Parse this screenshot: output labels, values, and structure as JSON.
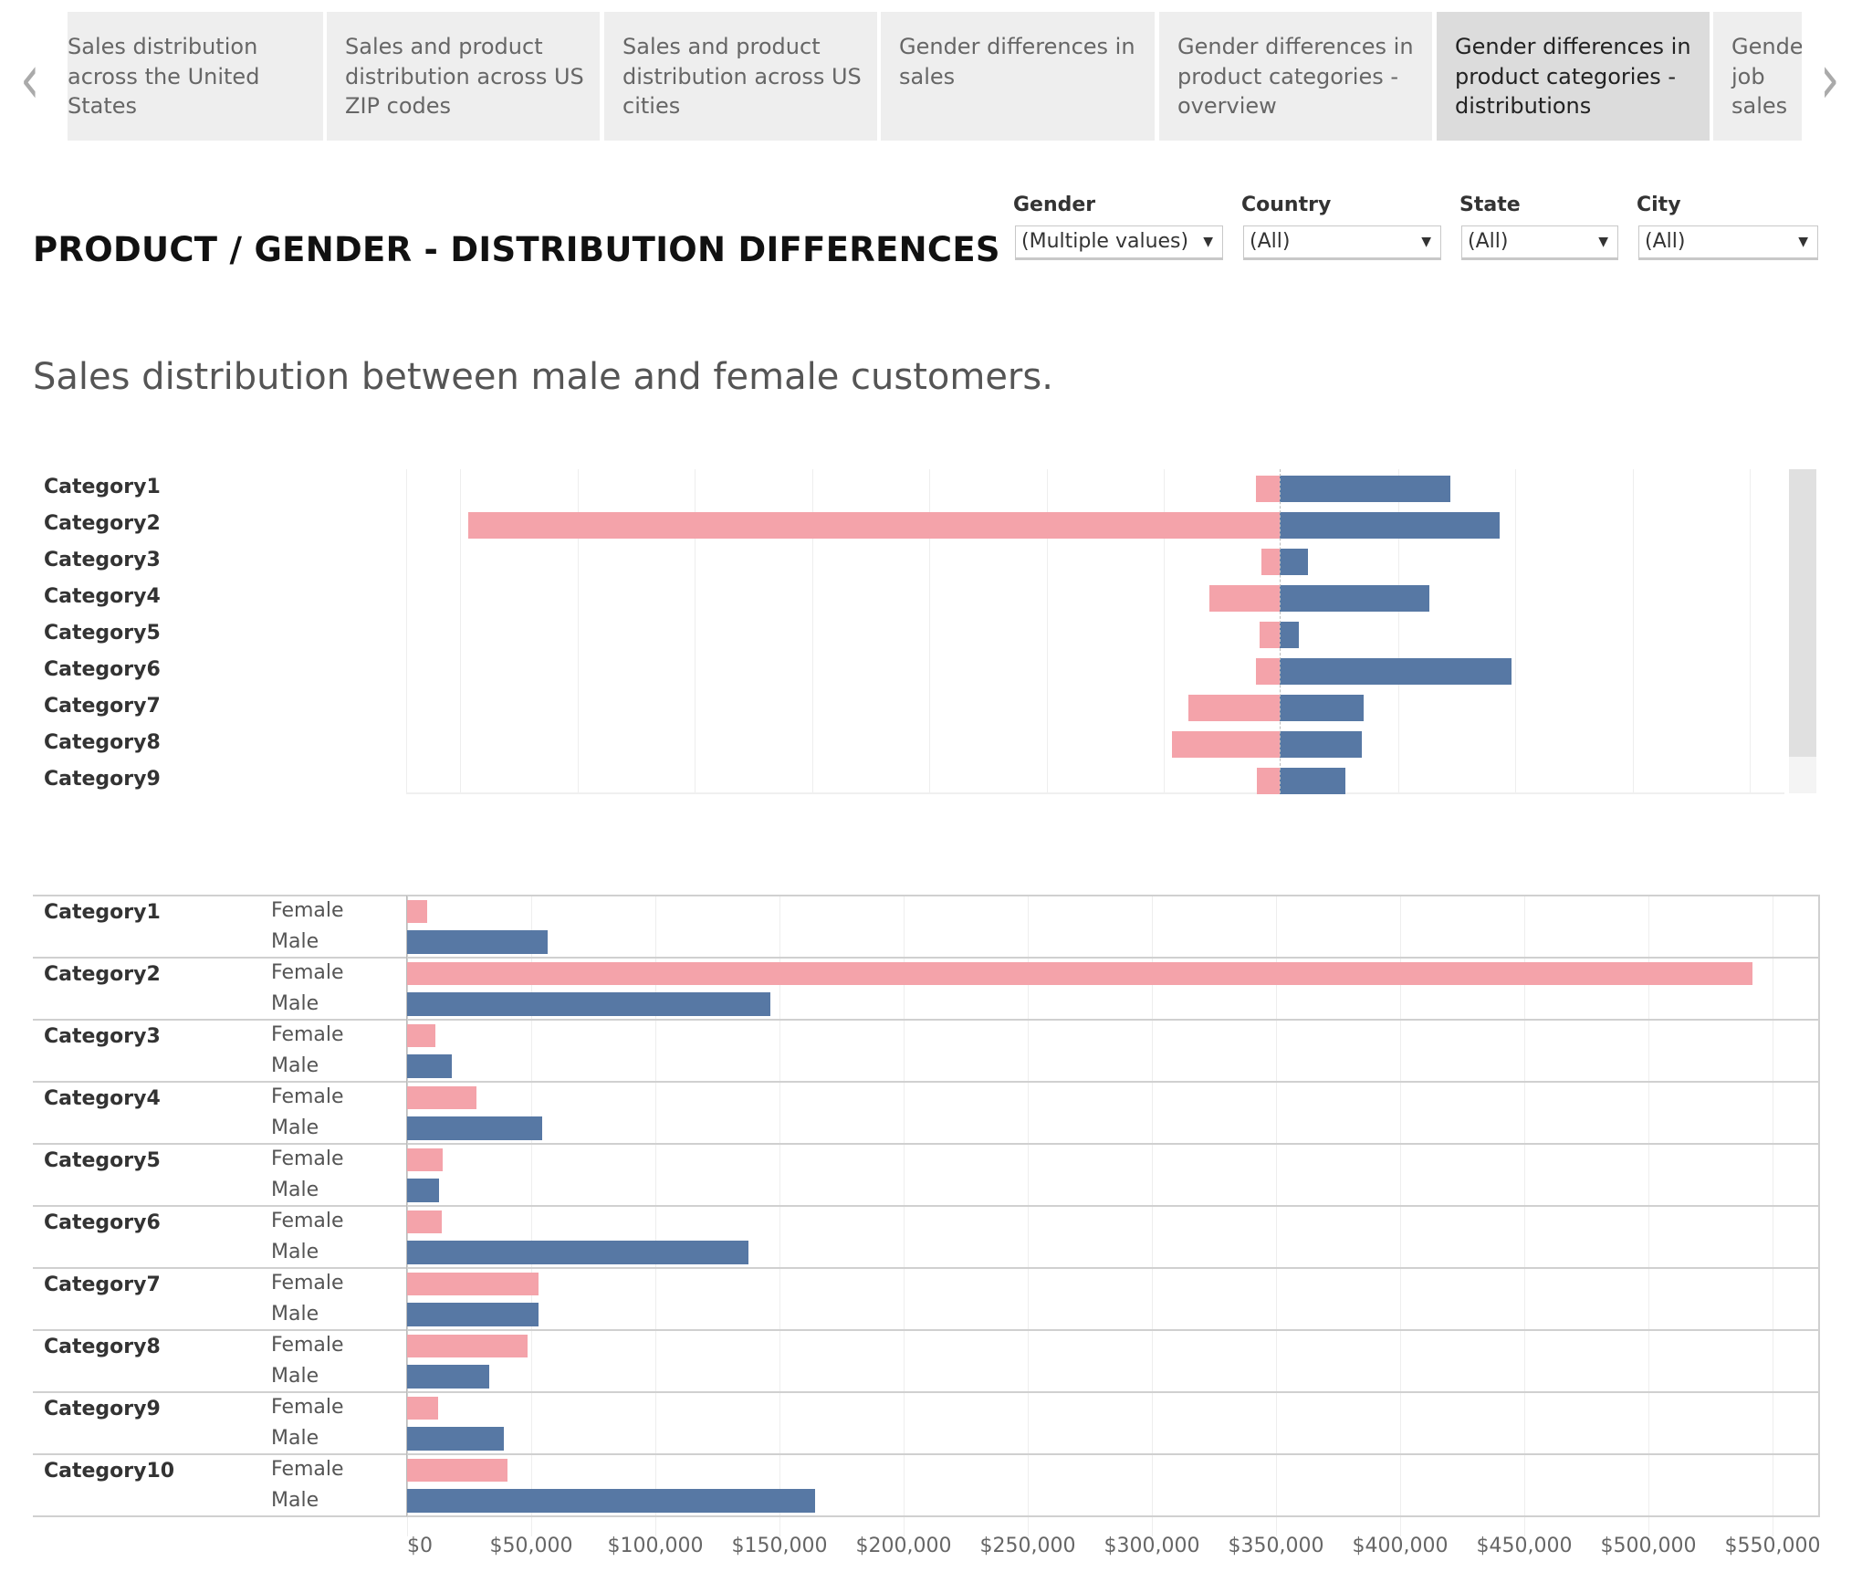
{
  "tabs": [
    {
      "label": "Sales distribution across the United States",
      "active": false
    },
    {
      "label": "Sales and product distribution across US ZIP codes",
      "active": false
    },
    {
      "label": "Sales and product distribution across US cities",
      "active": false
    },
    {
      "label": "Gender differences in sales",
      "active": false
    },
    {
      "label": "Gender differences in product categories - overview",
      "active": false
    },
    {
      "label": "Gender differences in product categories - distributions",
      "active": true
    },
    {
      "label": "Gender job sales",
      "active": false
    }
  ],
  "nav": {
    "prev_icon": "chevron-left-icon",
    "next_icon": "chevron-right-icon"
  },
  "title": "PRODUCT / GENDER - DISTRIBUTION DIFFERENCES",
  "filters": [
    {
      "label": "Gender",
      "value": "(Multiple values)"
    },
    {
      "label": "Country",
      "value": "(All)"
    },
    {
      "label": "State",
      "value": "(All)"
    },
    {
      "label": "City",
      "value": "(All)"
    }
  ],
  "subtitle": "Sales distribution between male and female customers.",
  "colors": {
    "female": "#f4a3aa",
    "male": "#5778a4"
  },
  "chart_data": [
    {
      "type": "bar",
      "orientation": "horizontal-diverging",
      "categories": [
        "Category1",
        "Category2",
        "Category3",
        "Category4",
        "Category5",
        "Category6",
        "Category7",
        "Category8",
        "Category9"
      ],
      "series": [
        {
          "values": [
            10000,
            346000,
            7600,
            30000,
            8600,
            10000,
            39000,
            46000,
            9600
          ],
          "color": "#f4a3aa",
          "direction": "left"
        },
        {
          "values": [
            73000,
            94000,
            12000,
            64000,
            8000,
            99000,
            36000,
            35000,
            28000
          ],
          "color": "#5778a4",
          "direction": "right"
        }
      ],
      "grid": true,
      "scrollable": true
    },
    {
      "type": "bar",
      "orientation": "horizontal",
      "categories": [
        "Category1",
        "Category2",
        "Category3",
        "Category4",
        "Category5",
        "Category6",
        "Category7",
        "Category8",
        "Category9",
        "Category10"
      ],
      "subcategories": [
        "Female",
        "Male"
      ],
      "series": [
        {
          "name": "Female",
          "values": [
            8000,
            542000,
            11500,
            28000,
            14500,
            14000,
            53000,
            48500,
            12500,
            40500
          ],
          "color": "#f4a3aa"
        },
        {
          "name": "Male",
          "values": [
            56500,
            146500,
            18000,
            54500,
            13000,
            137500,
            53000,
            33000,
            39000,
            164500
          ],
          "color": "#5778a4"
        }
      ],
      "xticks": [
        "$0",
        "$50,000",
        "$100,000",
        "$150,000",
        "$200,000",
        "$250,000",
        "$300,000",
        "$350,000",
        "$400,000",
        "$450,000",
        "$500,000",
        "$550,000"
      ],
      "xlim": [
        0,
        570000
      ],
      "grid": true
    }
  ]
}
